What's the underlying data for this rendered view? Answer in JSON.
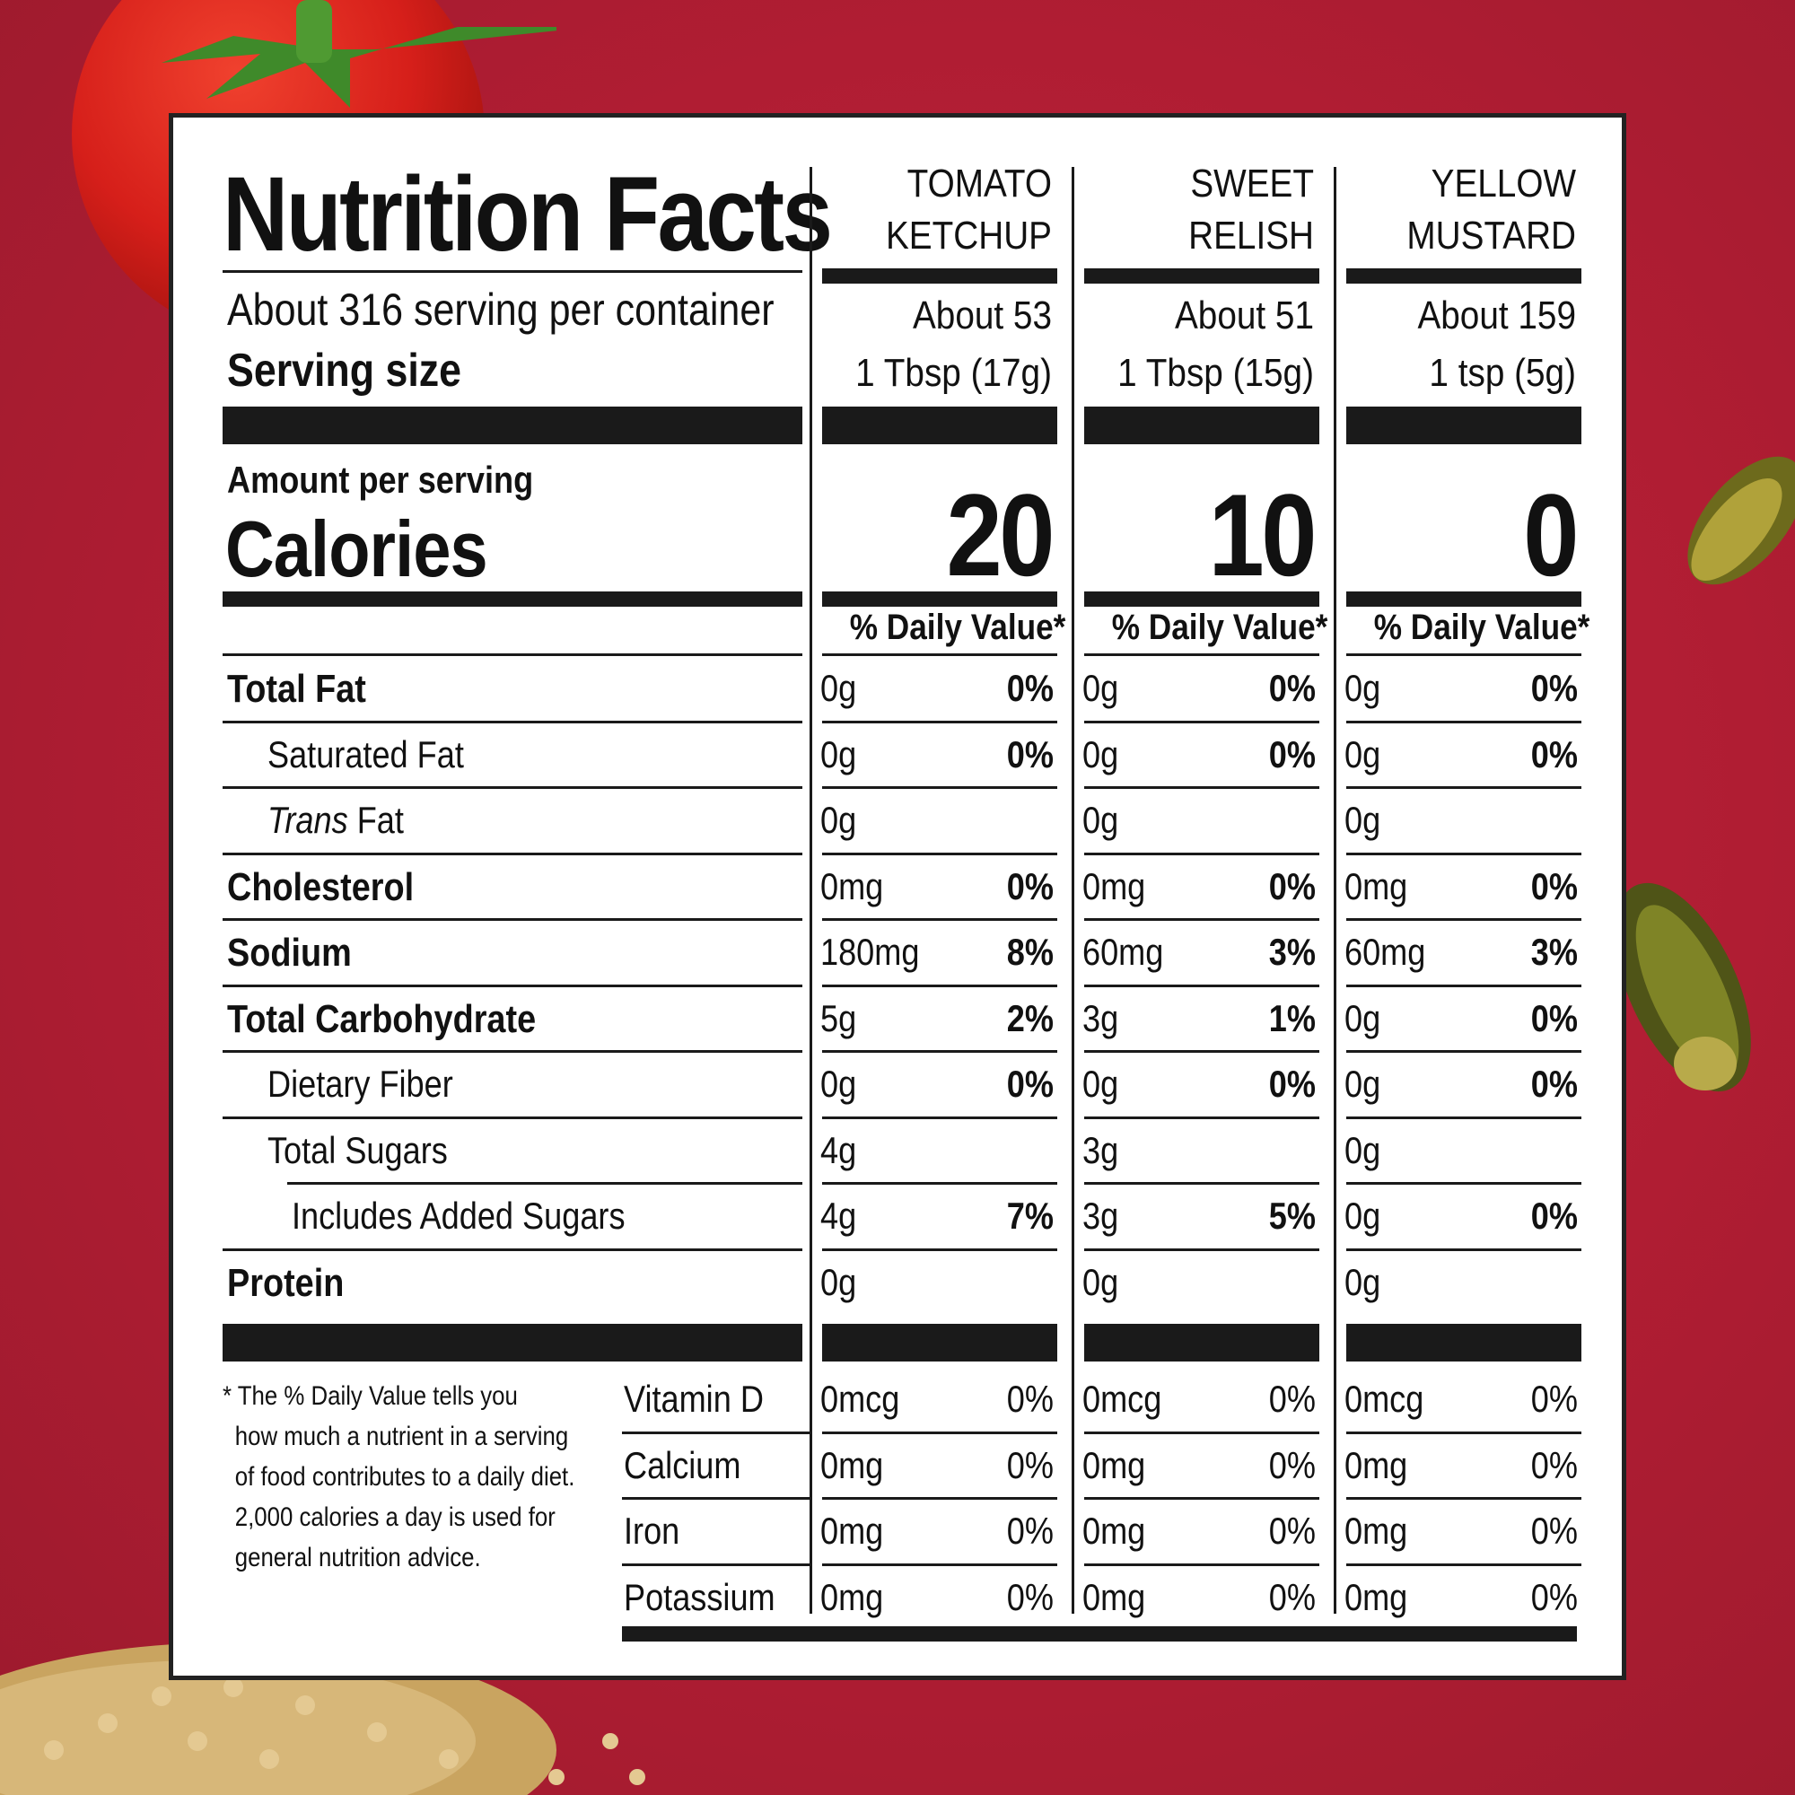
{
  "title": "Nutrition Facts",
  "servings_per_container": "About 316 serving per container",
  "serving_size_label": "Serving size",
  "amount_per_serving": "Amount per serving",
  "calories_label": "Calories",
  "daily_value_header": "% Daily Value*",
  "products": [
    {
      "name_line1": "TOMATO",
      "name_line2": "KETCHUP",
      "servings": "About 53",
      "serving_size": "1 Tbsp (17g)",
      "calories": "20",
      "nutrients": [
        [
          "0g",
          "0%"
        ],
        [
          "0g",
          "0%"
        ],
        [
          "0g",
          ""
        ],
        [
          "0mg",
          "0%"
        ],
        [
          "180mg",
          "8%"
        ],
        [
          "5g",
          "2%"
        ],
        [
          "0g",
          "0%"
        ],
        [
          "4g",
          ""
        ],
        [
          "4g",
          "7%"
        ],
        [
          "0g",
          ""
        ]
      ],
      "vitamins": [
        [
          "0mcg",
          "0%"
        ],
        [
          "0mg",
          "0%"
        ],
        [
          "0mg",
          "0%"
        ],
        [
          "0mg",
          "0%"
        ]
      ]
    },
    {
      "name_line1": "SWEET",
      "name_line2": "RELISH",
      "servings": "About 51",
      "serving_size": "1 Tbsp (15g)",
      "calories": "10",
      "nutrients": [
        [
          "0g",
          "0%"
        ],
        [
          "0g",
          "0%"
        ],
        [
          "0g",
          ""
        ],
        [
          "0mg",
          "0%"
        ],
        [
          "60mg",
          "3%"
        ],
        [
          "3g",
          "1%"
        ],
        [
          "0g",
          "0%"
        ],
        [
          "3g",
          ""
        ],
        [
          "3g",
          "5%"
        ],
        [
          "0g",
          ""
        ]
      ],
      "vitamins": [
        [
          "0mcg",
          "0%"
        ],
        [
          "0mg",
          "0%"
        ],
        [
          "0mg",
          "0%"
        ],
        [
          "0mg",
          "0%"
        ]
      ]
    },
    {
      "name_line1": "YELLOW",
      "name_line2": "MUSTARD",
      "servings": "About 159",
      "serving_size": "1 tsp (5g)",
      "calories": "0",
      "nutrients": [
        [
          "0g",
          "0%"
        ],
        [
          "0g",
          "0%"
        ],
        [
          "0g",
          ""
        ],
        [
          "0mg",
          "0%"
        ],
        [
          "60mg",
          "3%"
        ],
        [
          "0g",
          "0%"
        ],
        [
          "0g",
          "0%"
        ],
        [
          "0g",
          ""
        ],
        [
          "0g",
          "0%"
        ],
        [
          "0g",
          ""
        ]
      ],
      "vitamins": [
        [
          "0mcg",
          "0%"
        ],
        [
          "0mg",
          "0%"
        ],
        [
          "0mg",
          "0%"
        ],
        [
          "0mg",
          "0%"
        ]
      ]
    }
  ],
  "nutrient_rows": [
    {
      "label": "Total Fat",
      "bold": true,
      "indent": 0
    },
    {
      "label": "Saturated Fat",
      "bold": false,
      "indent": 1
    },
    {
      "label_italic": "Trans",
      "label": " Fat",
      "bold": false,
      "indent": 1
    },
    {
      "label": "Cholesterol",
      "bold": true,
      "indent": 0
    },
    {
      "label": "Sodium",
      "bold": true,
      "indent": 0
    },
    {
      "label": "Total Carbohydrate",
      "bold": true,
      "indent": 0
    },
    {
      "label": "Dietary Fiber",
      "bold": false,
      "indent": 1
    },
    {
      "label": "Total Sugars",
      "bold": false,
      "indent": 1
    },
    {
      "label": "Includes Added Sugars",
      "bold": false,
      "indent": 2
    },
    {
      "label": "Protein",
      "bold": true,
      "indent": 0
    }
  ],
  "vitamin_rows": [
    "Vitamin D",
    "Calcium",
    "Iron",
    "Potassium"
  ],
  "footnote": [
    "* The % Daily Value tells you",
    "how much a nutrient in a serving",
    "of food contributes to a daily diet.",
    "2,000 calories a day is used for",
    "general nutrition advice."
  ],
  "colors": {
    "background": "#b01d33",
    "panel": "#ffffff",
    "ink": "#1a1a1a"
  }
}
